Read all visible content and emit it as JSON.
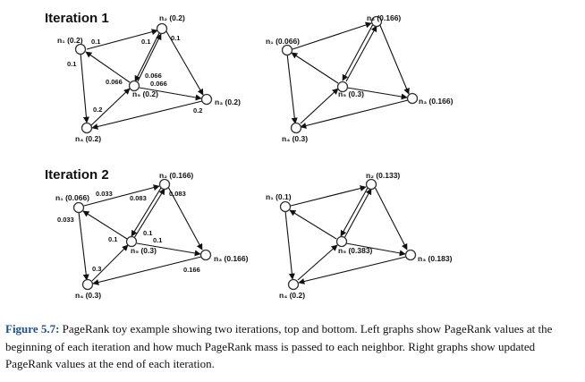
{
  "iteration1": {
    "title": "Iteration 1",
    "left": {
      "n1": "n₁ (0.2)",
      "n2": "n₂ (0.2)",
      "n3": "n₃ (0.2)",
      "n4": "n₄ (0.2)",
      "n5": "n₅ (0.2)",
      "edge_labels": {
        "n1_n2": "0.1",
        "n1_n4": "0.1",
        "n2_n5": "0.1",
        "n2_n3": "0.1",
        "n5_n1": "0.066",
        "n5_n2": "0.066",
        "n5_n3": "0.066",
        "n4_n5": "0.2",
        "n3_n1": "0.2"
      }
    },
    "right": {
      "n1": "n₁ (0.066)",
      "n2": "n₂ (0.166)",
      "n3": "n₃ (0.166)",
      "n4": "n₄ (0.3)",
      "n5": "n₅ (0.3)"
    }
  },
  "iteration2": {
    "title": "Iteration 2",
    "left": {
      "n1": "n₁ (0.066)",
      "n2": "n₂ (0.166)",
      "n3": "n₃ (0.166)",
      "n4": "n₄ (0.3)",
      "n5": "n₅ (0.3)",
      "edge_labels": {
        "n1_n2": "0.033",
        "n1_n4": "0.033",
        "n2_n5": "0.083",
        "n2_n3": "0.083",
        "n5_n1": "0.1",
        "n5_n2": "0.1",
        "n5_n3": "0.1",
        "n4_n5": "0.3",
        "n3_n1": "0.166"
      }
    },
    "right": {
      "n1": "n₁ (0.1)",
      "n2": "n₂ (0.133)",
      "n3": "n₃ (0.183)",
      "n4": "n₄ (0.2)",
      "n5": "n₅ (0.383)"
    }
  },
  "caption": {
    "label": "Figure 5.7:",
    "text": " PageRank toy example showing two iterations, top and bottom. Left graphs show PageRank values at the beginning of each iteration and how much PageRank mass is passed to each neighbor. Right graphs show updated PageRank values at the end of each iteration."
  }
}
